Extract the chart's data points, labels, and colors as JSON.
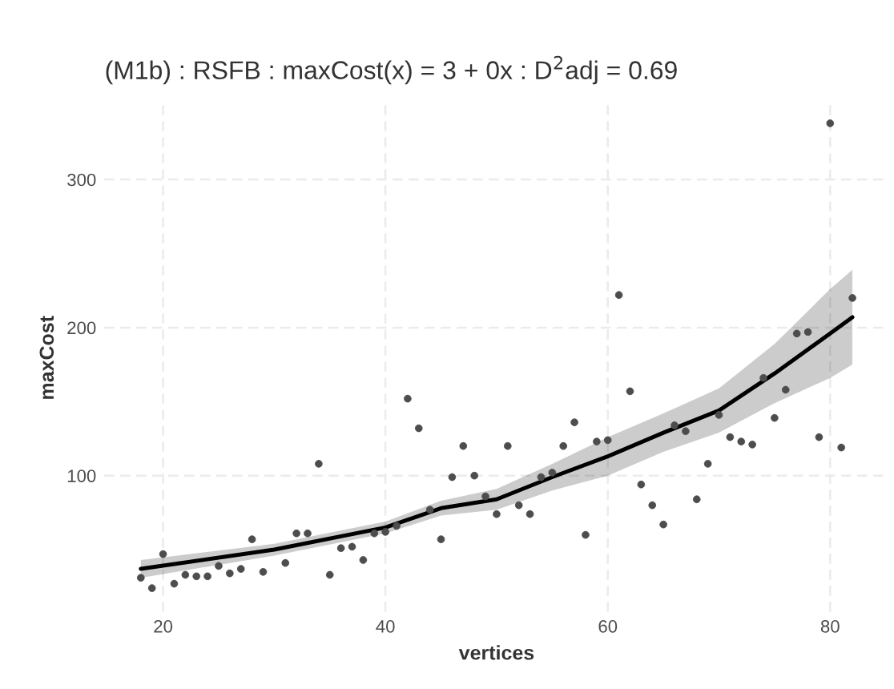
{
  "chart_data": {
    "type": "scatter",
    "title": "(M1b) : RSFB : maxCost(x) = 3 + 0x : D$^{2}$adj = 0.69",
    "xlabel": "vertices",
    "ylabel": "maxCost",
    "xlim": [
      14.7,
      85.3
    ],
    "ylim": [
      8,
      351
    ],
    "xticks": [
      20,
      40,
      60,
      80
    ],
    "yticks": [
      100,
      200,
      300
    ],
    "grid": true,
    "series": [
      {
        "color": "#4d4d4d",
        "marker": "circle",
        "x": [
          18,
          19,
          20,
          21,
          22,
          23,
          24,
          25,
          26,
          27,
          28,
          29,
          31,
          32,
          33,
          34,
          35,
          36,
          37,
          38,
          39,
          40,
          41,
          42,
          43,
          44,
          45,
          46,
          47,
          48,
          49,
          50,
          51,
          52,
          53,
          54,
          55,
          56,
          57,
          58,
          59,
          60,
          61,
          62,
          63,
          64,
          65,
          66,
          67,
          68,
          69,
          70,
          71,
          72,
          73,
          74,
          75,
          76,
          77,
          78,
          79,
          80,
          81,
          82
        ],
        "values": [
          31,
          24,
          47,
          27,
          33,
          32,
          32,
          39,
          34,
          37,
          57,
          35,
          41,
          61,
          61,
          108,
          33,
          51,
          52,
          43,
          61,
          62,
          66,
          152,
          132,
          77,
          57,
          99,
          120,
          100,
          86,
          74,
          120,
          80,
          74,
          99,
          102,
          120,
          136,
          60,
          123,
          124,
          222,
          157,
          94,
          80,
          67,
          134,
          130,
          84,
          108,
          141,
          126,
          123,
          121,
          166,
          139,
          158,
          196,
          197,
          126,
          338,
          119,
          220
        ]
      },
      {
        "type": "line",
        "marker": "none",
        "color": "#000000",
        "x": [
          18,
          30,
          40,
          45,
          50,
          55,
          60,
          65,
          70,
          75,
          80,
          82
        ],
        "values": [
          37,
          50,
          65,
          78,
          84,
          99,
          113,
          129,
          144,
          169,
          196,
          207
        ],
        "lower": [
          31,
          46,
          61,
          73,
          77,
          90,
          100,
          116,
          129,
          149,
          166,
          175
        ],
        "upper": [
          43,
          54,
          69,
          83,
          91,
          108,
          126,
          142,
          159,
          189,
          226,
          239
        ]
      }
    ]
  }
}
